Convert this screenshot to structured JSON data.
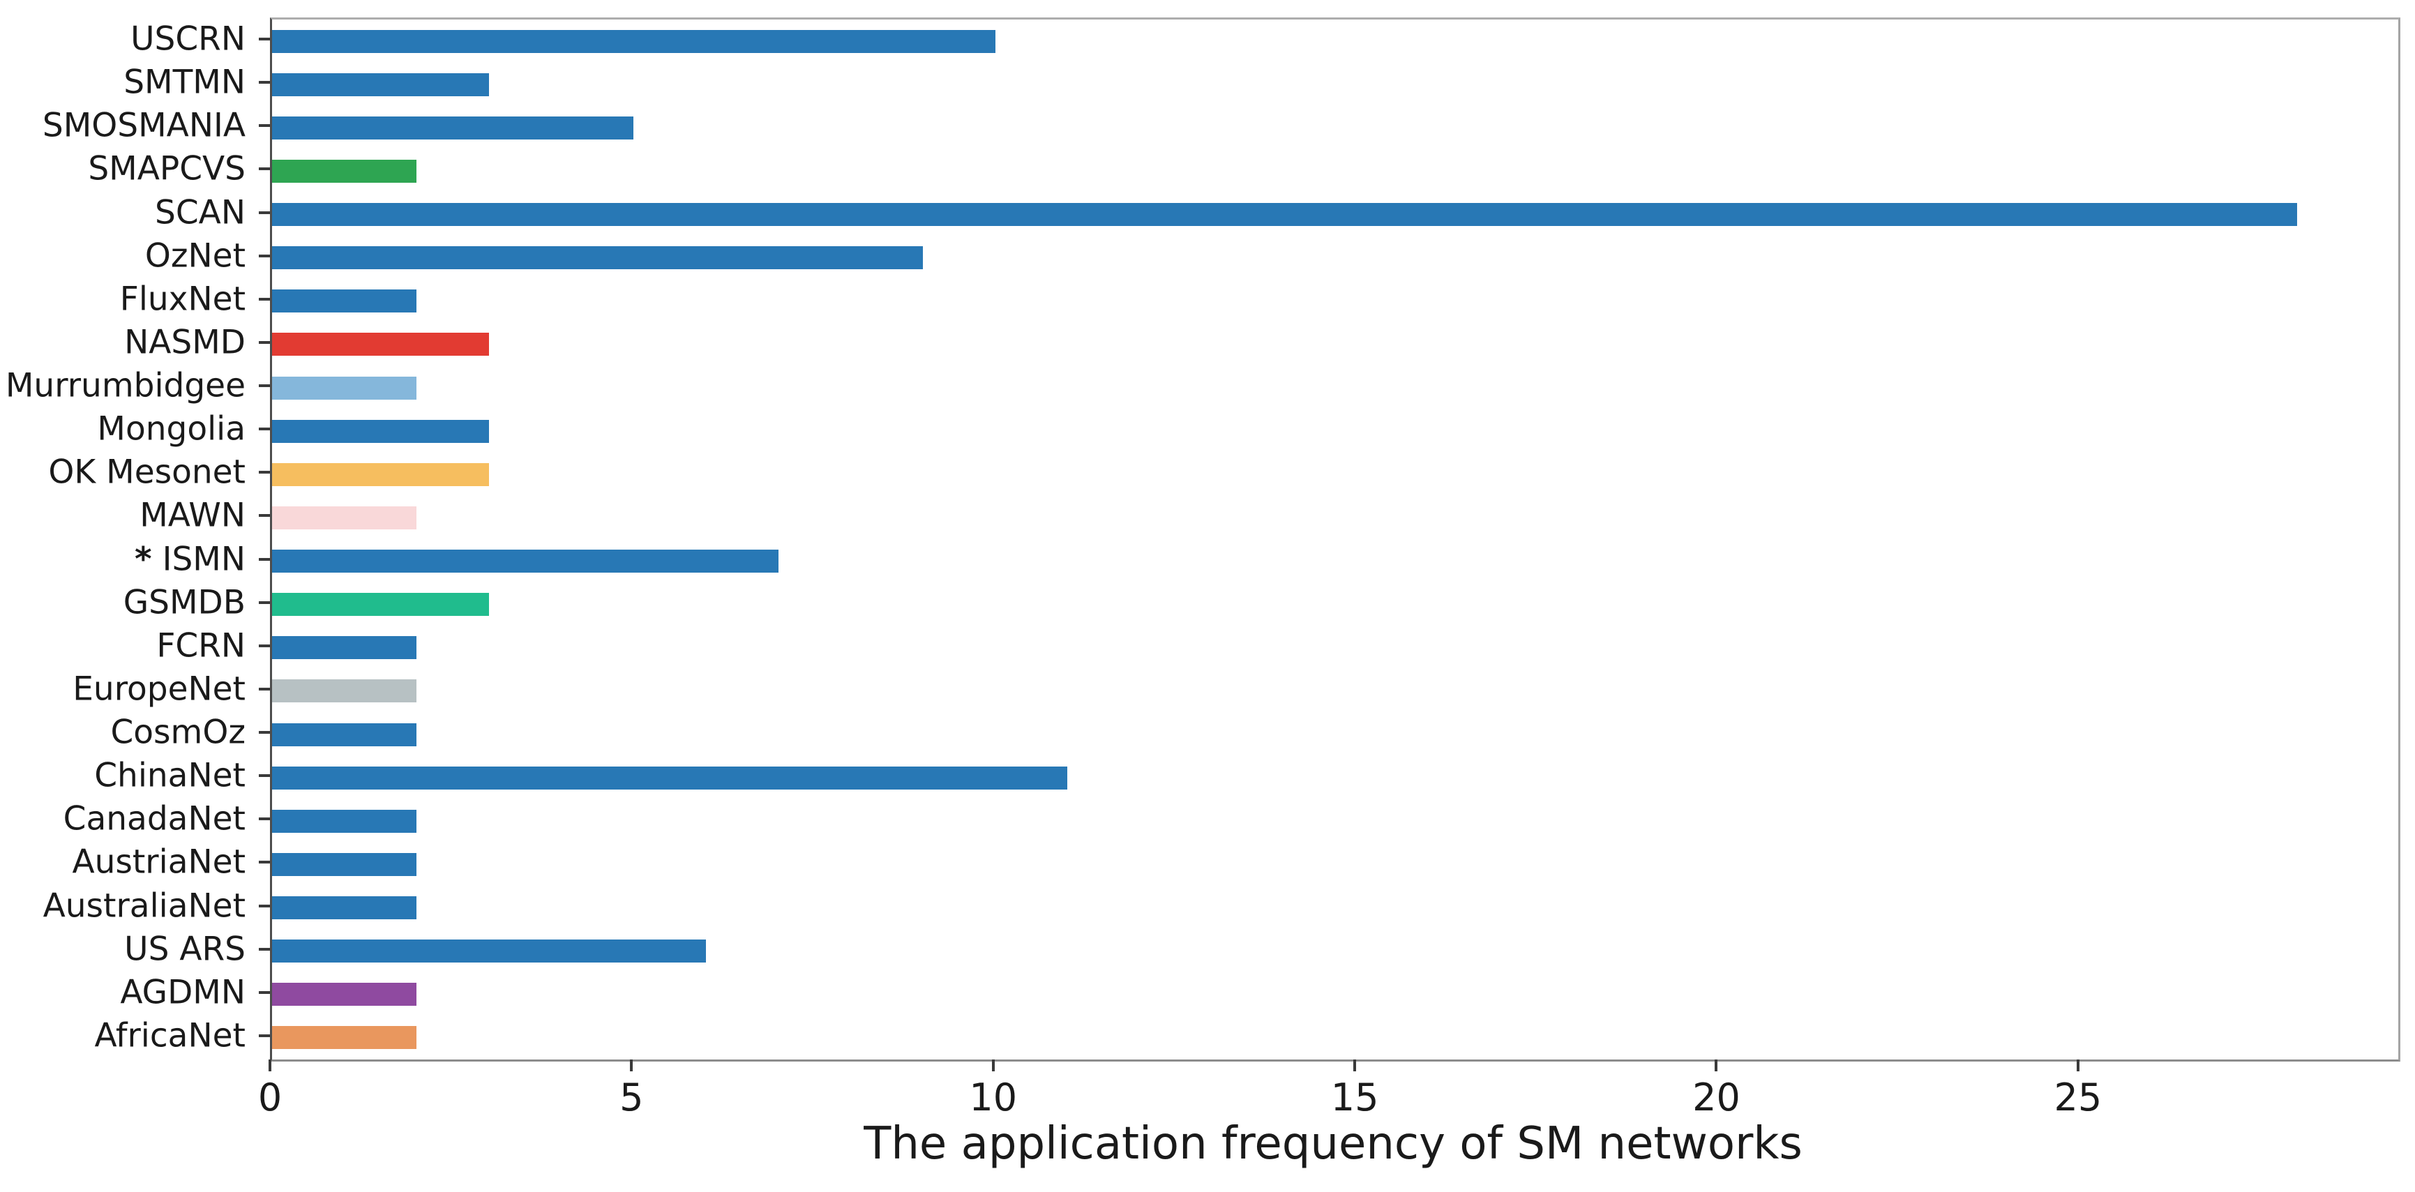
{
  "chart_data": {
    "type": "bar",
    "orientation": "horizontal",
    "title": "",
    "xlabel": "The application frequency of SM networks",
    "ylabel": "",
    "xlim": [
      0,
      29.4
    ],
    "xticks": [
      "0",
      "5",
      "10",
      "15",
      "20",
      "25"
    ],
    "grid": false,
    "legend": false,
    "text_color": "#1A1A1A",
    "default_bar_color": "#2878B5",
    "bars_top_to_bottom": [
      {
        "label": "USCRN",
        "value": 10,
        "color": "#2878B5"
      },
      {
        "label": "SMTMN",
        "value": 3,
        "color": "#2878B5"
      },
      {
        "label": "SMOSMANIA",
        "value": 5,
        "color": "#2878B5"
      },
      {
        "label": "SMAPCVS",
        "value": 2,
        "color": "#2EA552"
      },
      {
        "label": "SCAN",
        "value": 28,
        "color": "#2878B5"
      },
      {
        "label": "OzNet",
        "value": 9,
        "color": "#2878B5"
      },
      {
        "label": "FluxNet",
        "value": 2,
        "color": "#2878B5"
      },
      {
        "label": "NASMD",
        "value": 3,
        "color": "#E23B32"
      },
      {
        "label": "Murrumbidgee",
        "value": 2,
        "color": "#85B7DB"
      },
      {
        "label": "Mongolia",
        "value": 3,
        "color": "#2878B5"
      },
      {
        "label": "OK Mesonet",
        "value": 3,
        "color": "#F6BE5F"
      },
      {
        "label": "MAWN",
        "value": 2,
        "color": "#F9D8D9"
      },
      {
        "label": "* ISMN",
        "value": 7,
        "color": "#2878B5"
      },
      {
        "label": "GSMDB",
        "value": 3,
        "color": "#20BC8D"
      },
      {
        "label": "FCRN",
        "value": 2,
        "color": "#2878B5"
      },
      {
        "label": "EuropeNet",
        "value": 2,
        "color": "#B7C1C3"
      },
      {
        "label": "CosmOz",
        "value": 2,
        "color": "#2878B5"
      },
      {
        "label": "ChinaNet",
        "value": 11,
        "color": "#2878B5"
      },
      {
        "label": "CanadaNet",
        "value": 2,
        "color": "#2878B5"
      },
      {
        "label": "AustriaNet",
        "value": 2,
        "color": "#2878B5"
      },
      {
        "label": "AustraliaNet",
        "value": 2,
        "color": "#2878B5"
      },
      {
        "label": "US ARS",
        "value": 6,
        "color": "#2878B5"
      },
      {
        "label": "AGDMN",
        "value": 2,
        "color": "#8F4AA0"
      },
      {
        "label": "AfricaNet",
        "value": 2,
        "color": "#E9975E"
      }
    ]
  }
}
